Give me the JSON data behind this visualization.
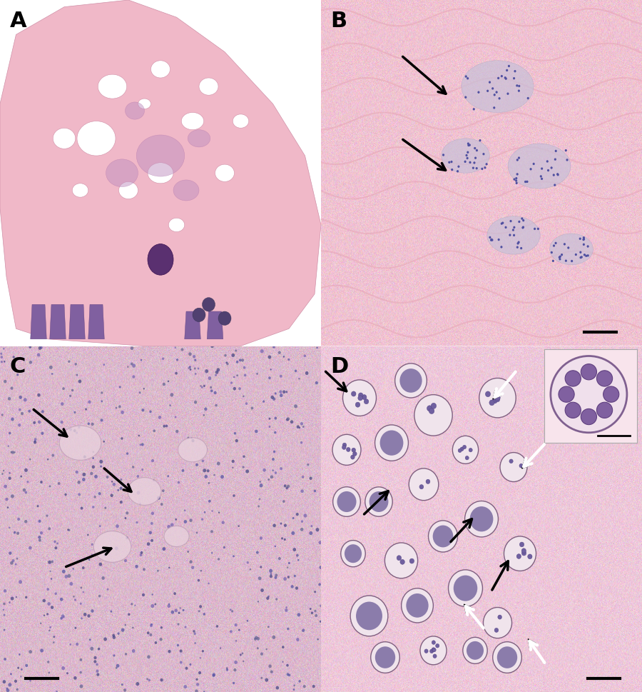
{
  "figure_bg": "#ffffff",
  "panel_labels": [
    "A",
    "B",
    "C",
    "D"
  ],
  "panel_label_fontsize": 22,
  "panel_label_color": "#000000",
  "panel_label_weight": "bold",
  "panel_A_bg": "#ffffff",
  "panel_B_bg": "#f8e0e8",
  "panel_C_bg": "#f0dce8",
  "panel_D_bg": "#f5dce8",
  "panel_D_inset_bg": "#f8e4ec",
  "tissue_pink": "#f0b8c8",
  "tissue_pink_edge": "#d090a8",
  "tissue_purple": "#c090c0",
  "tissue_purple_edge": "#a060a0",
  "teeth_color": "#8060a0",
  "teeth_edge": "#604080",
  "dark_circle": "#5a3070",
  "dark_circle_edge": "#3a1050",
  "collagen_color": "#e8a8b8",
  "cluster_face": "#c8c0d8",
  "cluster_edge": "#a0a0c0",
  "nuclei_color": "#5050a0",
  "cell_colors": [
    "#5050a0",
    "#7060b0",
    "#404080",
    "#606090"
  ],
  "gland_face": "#e8d0dc",
  "gland_edge": "#c0a0b8",
  "sporangia_face": "#f0e4ec",
  "sporangia_edge": "#806080",
  "endospore_face": "#7060a0",
  "endospore_edge": "#504080",
  "inset_sporangia_face": "#f0e0ec",
  "inset_sporangia_edge": "#806090",
  "inset_endospore_face": "#8060a0",
  "inset_endospore_edge": "#604080",
  "scale_bar_color": "#000000"
}
